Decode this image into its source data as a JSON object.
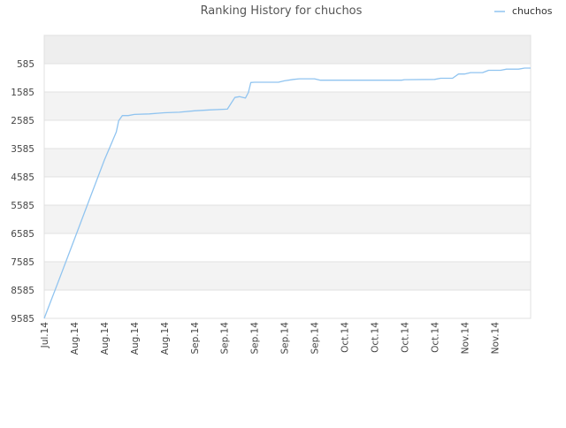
{
  "chart_data": {
    "type": "line",
    "title": "Ranking History for chuchos",
    "xlabel": "",
    "ylabel": "",
    "y_reversed": true,
    "ylim": [
      9585,
      -415
    ],
    "y_ticks": [
      585,
      1585,
      2585,
      3585,
      4585,
      5585,
      6585,
      7585,
      8585,
      9585
    ],
    "x_tick_labels": [
      "Jul.14",
      "Aug.14",
      "Aug.14",
      "Aug.14",
      "Aug.14",
      "Sep.14",
      "Sep.14",
      "Sep.14",
      "Sep.14",
      "Sep.14",
      "Oct.14",
      "Oct.14",
      "Oct.14",
      "Oct.14",
      "Nov.14",
      "Nov.14"
    ],
    "x_range": [
      0,
      16.2
    ],
    "grid": "horizontal",
    "band_colors": [
      "#eeeeee",
      "#ffffff",
      "#f3f3f3"
    ],
    "legend": {
      "position": "top-right"
    },
    "series": [
      {
        "name": "chuchos",
        "color": "#90c4f0",
        "points": [
          [
            0,
            9585
          ],
          [
            0.5,
            8200
          ],
          [
            1.0,
            6800
          ],
          [
            1.5,
            5400
          ],
          [
            2.0,
            4000
          ],
          [
            2.4,
            3000
          ],
          [
            2.48,
            2600
          ],
          [
            2.6,
            2420
          ],
          [
            2.8,
            2420
          ],
          [
            3.0,
            2380
          ],
          [
            3.5,
            2360
          ],
          [
            4.0,
            2320
          ],
          [
            4.5,
            2300
          ],
          [
            5.0,
            2250
          ],
          [
            5.5,
            2220
          ],
          [
            6.1,
            2190
          ],
          [
            6.35,
            1780
          ],
          [
            6.5,
            1750
          ],
          [
            6.7,
            1800
          ],
          [
            6.8,
            1600
          ],
          [
            6.88,
            1250
          ],
          [
            7.0,
            1240
          ],
          [
            7.8,
            1240
          ],
          [
            8.0,
            1190
          ],
          [
            8.3,
            1140
          ],
          [
            8.5,
            1120
          ],
          [
            9.0,
            1120
          ],
          [
            9.2,
            1170
          ],
          [
            10.0,
            1170
          ],
          [
            11.0,
            1170
          ],
          [
            11.9,
            1170
          ],
          [
            12.0,
            1150
          ],
          [
            13.0,
            1140
          ],
          [
            13.2,
            1100
          ],
          [
            13.6,
            1100
          ],
          [
            13.8,
            950
          ],
          [
            14.0,
            950
          ],
          [
            14.2,
            900
          ],
          [
            14.6,
            900
          ],
          [
            14.8,
            820
          ],
          [
            15.2,
            820
          ],
          [
            15.4,
            780
          ],
          [
            15.8,
            780
          ],
          [
            16.0,
            740
          ],
          [
            16.2,
            740
          ]
        ]
      }
    ]
  }
}
